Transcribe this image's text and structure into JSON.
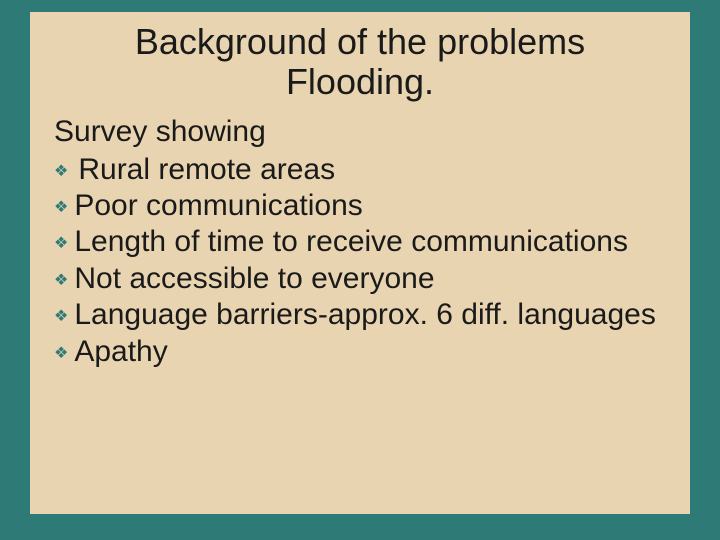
{
  "colors": {
    "slide_bg": "#2d7a76",
    "box_bg": "#e8d4b0",
    "title_color": "#1a1a1a",
    "body_color": "#1a1a1a",
    "bullet_color": "#2d7a76"
  },
  "typography": {
    "title_fontsize": 36,
    "body_fontsize": 30,
    "bullet_icon_fontsize": 16,
    "title_font": "Arial",
    "body_font": "Verdana"
  },
  "title_line1": "Background of the problems",
  "title_line2": "Flooding.",
  "subhead": "Survey showing",
  "bullet_glyph": "❖",
  "bullets": [
    {
      "text": "Rural remote areas",
      "leading_space": true
    },
    {
      "text": "Poor communications",
      "leading_space": false
    },
    {
      "text": "Length of time to receive communications",
      "leading_space": false
    },
    {
      "text": "Not accessible to everyone",
      "leading_space": false
    },
    {
      "text": "Language barriers-approx. 6 diff. languages",
      "leading_space": false
    },
    {
      "text": "Apathy",
      "leading_space": false
    }
  ]
}
